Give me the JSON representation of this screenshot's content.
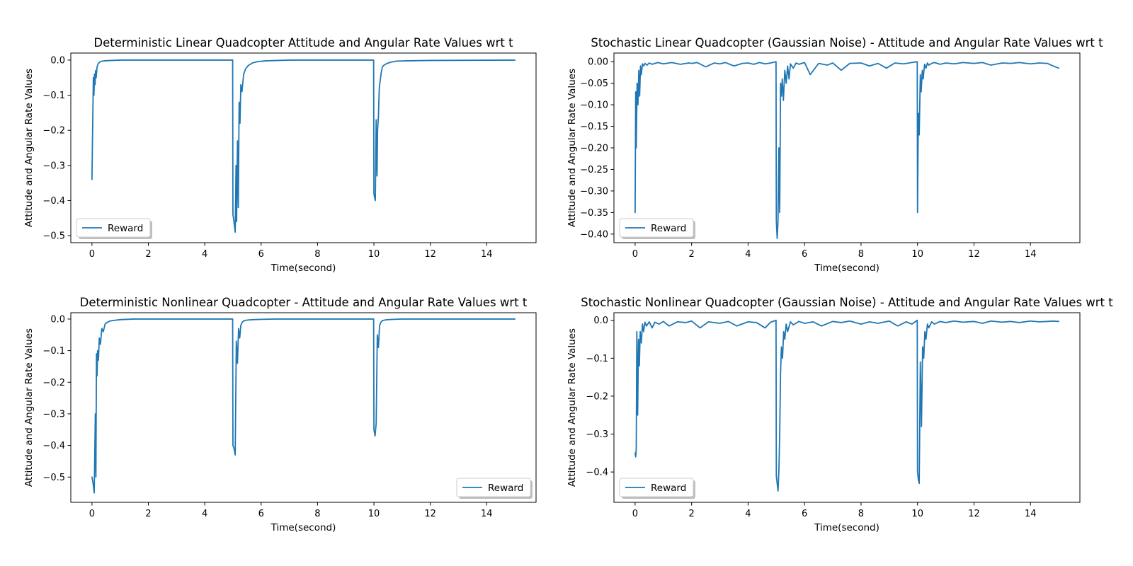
{
  "chart_data": [
    {
      "type": "line",
      "title": "Deterministic Linear Quadcopter Attitude and Angular Rate Values wrt t",
      "xlabel": "Time(second)",
      "ylabel": "Attitude and Angular Rate Values",
      "xlim": [
        -0.75,
        15.75
      ],
      "ylim": [
        -0.52,
        0.02
      ],
      "xticks": [
        0,
        2,
        4,
        6,
        8,
        10,
        12,
        14
      ],
      "xtick_labels": [
        "0",
        "2",
        "4",
        "6",
        "8",
        "10",
        "12",
        "14"
      ],
      "yticks": [
        0.0,
        -0.1,
        -0.2,
        -0.3,
        -0.4,
        -0.5
      ],
      "ytick_labels": [
        "0.0",
        "−0.1",
        "−0.2",
        "−0.3",
        "−0.4",
        "−0.5"
      ],
      "legend": "lower-left",
      "series": [
        {
          "name": "Reward",
          "color": "#1f77b4",
          "x": [
            0,
            0.03,
            0.05,
            0.07,
            0.09,
            0.11,
            0.13,
            0.15,
            0.18,
            0.22,
            0.3,
            0.45,
            0.7,
            1.0,
            3.0,
            4.99,
            5.0,
            5.02,
            5.05,
            5.08,
            5.11,
            5.13,
            5.16,
            5.19,
            5.22,
            5.25,
            5.28,
            5.32,
            5.38,
            5.45,
            5.55,
            5.7,
            5.9,
            6.2,
            7,
            9.99,
            10.0,
            10.02,
            10.05,
            10.08,
            10.11,
            10.13,
            10.16,
            10.19,
            10.22,
            10.26,
            10.3,
            10.35,
            10.45,
            10.6,
            10.8,
            11.2,
            12,
            15
          ],
          "y": [
            -0.34,
            -0.16,
            -0.05,
            -0.1,
            -0.04,
            -0.07,
            -0.03,
            -0.05,
            -0.02,
            -0.01,
            -0.004,
            -0.002,
            -0.001,
            0.0,
            0.0,
            0.0,
            -0.44,
            -0.45,
            -0.47,
            -0.49,
            -0.3,
            -0.46,
            -0.23,
            -0.42,
            -0.12,
            -0.18,
            -0.07,
            -0.09,
            -0.04,
            -0.025,
            -0.015,
            -0.008,
            -0.004,
            -0.002,
            0.0,
            0.0,
            -0.38,
            -0.39,
            -0.4,
            -0.17,
            -0.33,
            -0.2,
            -0.16,
            -0.08,
            -0.06,
            -0.035,
            -0.02,
            -0.015,
            -0.01,
            -0.006,
            -0.003,
            -0.002,
            -0.001,
            0.0
          ]
        }
      ]
    },
    {
      "type": "line",
      "title": "Stochastic Linear Quadcopter (Gaussian Noise) - Attitude and Angular Rate Values wrt t",
      "xlabel": "Time(second)",
      "ylabel": "Attitude and Angular Rate Values",
      "xlim": [
        -0.75,
        15.75
      ],
      "ylim": [
        -0.42,
        0.02
      ],
      "xticks": [
        0,
        2,
        4,
        6,
        8,
        10,
        12,
        14
      ],
      "xtick_labels": [
        "0",
        "2",
        "4",
        "6",
        "8",
        "10",
        "12",
        "14"
      ],
      "yticks": [
        0.0,
        -0.05,
        -0.1,
        -0.15,
        -0.2,
        -0.25,
        -0.3,
        -0.35,
        -0.4
      ],
      "ytick_labels": [
        "0.00",
        "−0.05",
        "−0.10",
        "−0.15",
        "−0.20",
        "−0.25",
        "−0.30",
        "−0.35",
        "−0.40"
      ],
      "legend": "lower-left",
      "series": [
        {
          "name": "Reward",
          "color": "#1f77b4",
          "x": [
            0,
            0.02,
            0.04,
            0.07,
            0.1,
            0.13,
            0.16,
            0.19,
            0.22,
            0.26,
            0.3,
            0.35,
            0.42,
            0.5,
            0.6,
            0.8,
            1.0,
            1.3,
            1.6,
            1.9,
            2.0,
            2.2,
            2.5,
            2.8,
            3.0,
            3.2,
            3.5,
            3.8,
            4.0,
            4.2,
            4.4,
            4.6,
            4.8,
            4.99,
            5.0,
            5.03,
            5.06,
            5.09,
            5.12,
            5.15,
            5.18,
            5.21,
            5.25,
            5.3,
            5.35,
            5.4,
            5.45,
            5.5,
            5.6,
            5.7,
            5.8,
            6.0,
            6.2,
            6.5,
            6.8,
            7.0,
            7.3,
            7.6,
            8.0,
            8.3,
            8.6,
            8.9,
            9.2,
            9.5,
            9.8,
            9.99,
            10.0,
            10.03,
            10.06,
            10.1,
            10.13,
            10.17,
            10.2,
            10.25,
            10.3,
            10.35,
            10.4,
            10.5,
            10.6,
            10.8,
            11.0,
            11.3,
            11.6,
            12.0,
            12.3,
            12.6,
            13.0,
            13.3,
            13.6,
            14.0,
            14.3,
            14.6,
            14.8,
            15.0
          ],
          "y": [
            -0.35,
            -0.07,
            -0.2,
            -0.05,
            -0.1,
            -0.02,
            -0.08,
            -0.01,
            -0.03,
            -0.005,
            -0.01,
            -0.004,
            -0.008,
            -0.003,
            -0.006,
            -0.002,
            -0.005,
            -0.002,
            -0.006,
            -0.003,
            -0.004,
            -0.002,
            -0.012,
            -0.003,
            -0.005,
            -0.002,
            -0.01,
            -0.004,
            -0.003,
            -0.006,
            -0.002,
            -0.005,
            -0.003,
            0.0,
            -0.37,
            -0.41,
            -0.37,
            -0.2,
            -0.35,
            -0.05,
            -0.08,
            -0.04,
            -0.09,
            -0.02,
            -0.05,
            -0.01,
            -0.04,
            -0.005,
            -0.015,
            -0.003,
            -0.006,
            -0.002,
            -0.03,
            -0.004,
            -0.008,
            -0.003,
            -0.02,
            -0.004,
            -0.003,
            -0.01,
            -0.004,
            -0.015,
            -0.003,
            -0.005,
            -0.002,
            0.0,
            -0.35,
            -0.12,
            -0.17,
            -0.03,
            -0.07,
            -0.02,
            -0.04,
            -0.006,
            -0.015,
            -0.003,
            -0.008,
            -0.004,
            -0.002,
            -0.006,
            -0.003,
            -0.005,
            -0.002,
            -0.004,
            -0.002,
            -0.008,
            -0.003,
            -0.004,
            -0.002,
            -0.005,
            -0.003,
            -0.004,
            -0.01,
            -0.015
          ]
        }
      ]
    },
    {
      "type": "line",
      "title": "Deterministic Nonlinear Quadcopter - Attitude and Angular Rate Values wrt t",
      "xlabel": "Time(second)",
      "ylabel": "Attitude and Angular Rate Values",
      "xlim": [
        -0.75,
        15.75
      ],
      "ylim": [
        -0.58,
        0.02
      ],
      "xticks": [
        0,
        2,
        4,
        6,
        8,
        10,
        12,
        14
      ],
      "xtick_labels": [
        "0",
        "2",
        "4",
        "6",
        "8",
        "10",
        "12",
        "14"
      ],
      "yticks": [
        0.0,
        -0.1,
        -0.2,
        -0.3,
        -0.4,
        -0.5
      ],
      "ytick_labels": [
        "0.0",
        "−0.1",
        "−0.2",
        "−0.3",
        "−0.4",
        "−0.5"
      ],
      "legend": "lower-right",
      "series": [
        {
          "name": "Reward",
          "color": "#1f77b4",
          "x": [
            0,
            0.04,
            0.08,
            0.12,
            0.14,
            0.16,
            0.18,
            0.2,
            0.23,
            0.26,
            0.3,
            0.35,
            0.4,
            0.47,
            0.55,
            0.65,
            0.8,
            1.0,
            1.5,
            4.99,
            5.0,
            5.04,
            5.08,
            5.12,
            5.16,
            5.2,
            5.24,
            5.28,
            5.33,
            5.38,
            5.45,
            5.55,
            5.7,
            6.0,
            6.5,
            9.99,
            10.0,
            10.04,
            10.08,
            10.12,
            10.16,
            10.2,
            10.25,
            10.3,
            10.4,
            10.5,
            10.7,
            11.0,
            15.0
          ],
          "y": [
            -0.5,
            -0.52,
            -0.55,
            -0.3,
            -0.5,
            -0.11,
            -0.18,
            -0.1,
            -0.13,
            -0.06,
            -0.08,
            -0.03,
            -0.04,
            -0.015,
            -0.01,
            -0.006,
            -0.004,
            -0.002,
            0.0,
            0.0,
            -0.4,
            -0.41,
            -0.43,
            -0.07,
            -0.14,
            -0.03,
            -0.06,
            -0.02,
            -0.01,
            -0.006,
            -0.004,
            -0.003,
            -0.002,
            -0.001,
            0.0,
            0.0,
            -0.35,
            -0.37,
            -0.33,
            -0.05,
            -0.09,
            -0.02,
            -0.01,
            -0.005,
            -0.003,
            -0.002,
            -0.001,
            0.0,
            0.0
          ]
        }
      ]
    },
    {
      "type": "line",
      "title": "Stochastic Nonlinear Quadcopter (Gaussian Noise) - Attitude and Angular Rate Values wrt t",
      "xlabel": "Time(second)",
      "ylabel": "Attitude and Angular Rate Values",
      "xlim": [
        -0.75,
        15.75
      ],
      "ylim": [
        -0.48,
        0.02
      ],
      "xticks": [
        0,
        2,
        4,
        6,
        8,
        10,
        12,
        14
      ],
      "xtick_labels": [
        "0",
        "2",
        "4",
        "6",
        "8",
        "10",
        "12",
        "14"
      ],
      "yticks": [
        0.0,
        -0.1,
        -0.2,
        -0.3,
        -0.4
      ],
      "ytick_labels": [
        "0.0",
        "−0.1",
        "−0.2",
        "−0.3",
        "−0.4"
      ],
      "legend": "lower-left",
      "series": [
        {
          "name": "Reward",
          "color": "#1f77b4",
          "x": [
            0,
            0.02,
            0.04,
            0.06,
            0.09,
            0.12,
            0.15,
            0.18,
            0.22,
            0.26,
            0.3,
            0.35,
            0.4,
            0.5,
            0.6,
            0.7,
            0.85,
            1.0,
            1.2,
            1.5,
            1.8,
            2.0,
            2.3,
            2.6,
            3.0,
            3.3,
            3.6,
            4.0,
            4.3,
            4.6,
            4.8,
            4.99,
            5.0,
            5.03,
            5.06,
            5.09,
            5.12,
            5.15,
            5.18,
            5.22,
            5.26,
            5.3,
            5.35,
            5.4,
            5.5,
            5.6,
            5.8,
            6.0,
            6.3,
            6.6,
            7.0,
            7.3,
            7.6,
            8.0,
            8.3,
            8.6,
            9.0,
            9.3,
            9.6,
            9.8,
            9.99,
            10.0,
            10.03,
            10.06,
            10.1,
            10.14,
            10.18,
            10.22,
            10.26,
            10.3,
            10.35,
            10.4,
            10.5,
            10.6,
            10.8,
            11.0,
            11.3,
            11.6,
            12.0,
            12.3,
            12.6,
            13.0,
            13.3,
            13.6,
            14.0,
            14.3,
            14.6,
            14.8,
            15.0
          ],
          "y": [
            -0.35,
            -0.36,
            -0.34,
            -0.03,
            -0.25,
            -0.05,
            -0.12,
            -0.03,
            -0.06,
            -0.01,
            -0.03,
            -0.005,
            -0.015,
            -0.004,
            -0.02,
            -0.005,
            -0.01,
            -0.003,
            -0.015,
            -0.004,
            -0.006,
            -0.002,
            -0.02,
            -0.004,
            -0.008,
            -0.003,
            -0.015,
            -0.004,
            -0.006,
            -0.02,
            -0.005,
            0.0,
            -0.41,
            -0.43,
            -0.45,
            -0.4,
            -0.3,
            -0.14,
            -0.07,
            -0.1,
            -0.03,
            -0.05,
            -0.01,
            -0.03,
            -0.004,
            -0.012,
            -0.003,
            -0.008,
            -0.004,
            -0.015,
            -0.003,
            -0.006,
            -0.002,
            -0.01,
            -0.004,
            -0.008,
            -0.002,
            -0.015,
            -0.004,
            -0.01,
            0.0,
            -0.4,
            -0.42,
            -0.43,
            -0.11,
            -0.28,
            -0.07,
            -0.1,
            -0.03,
            -0.05,
            -0.01,
            -0.02,
            -0.004,
            -0.01,
            -0.003,
            -0.006,
            -0.002,
            -0.005,
            -0.003,
            -0.008,
            -0.002,
            -0.005,
            -0.003,
            -0.006,
            -0.002,
            -0.004,
            -0.003,
            -0.002,
            -0.003
          ]
        }
      ]
    }
  ]
}
